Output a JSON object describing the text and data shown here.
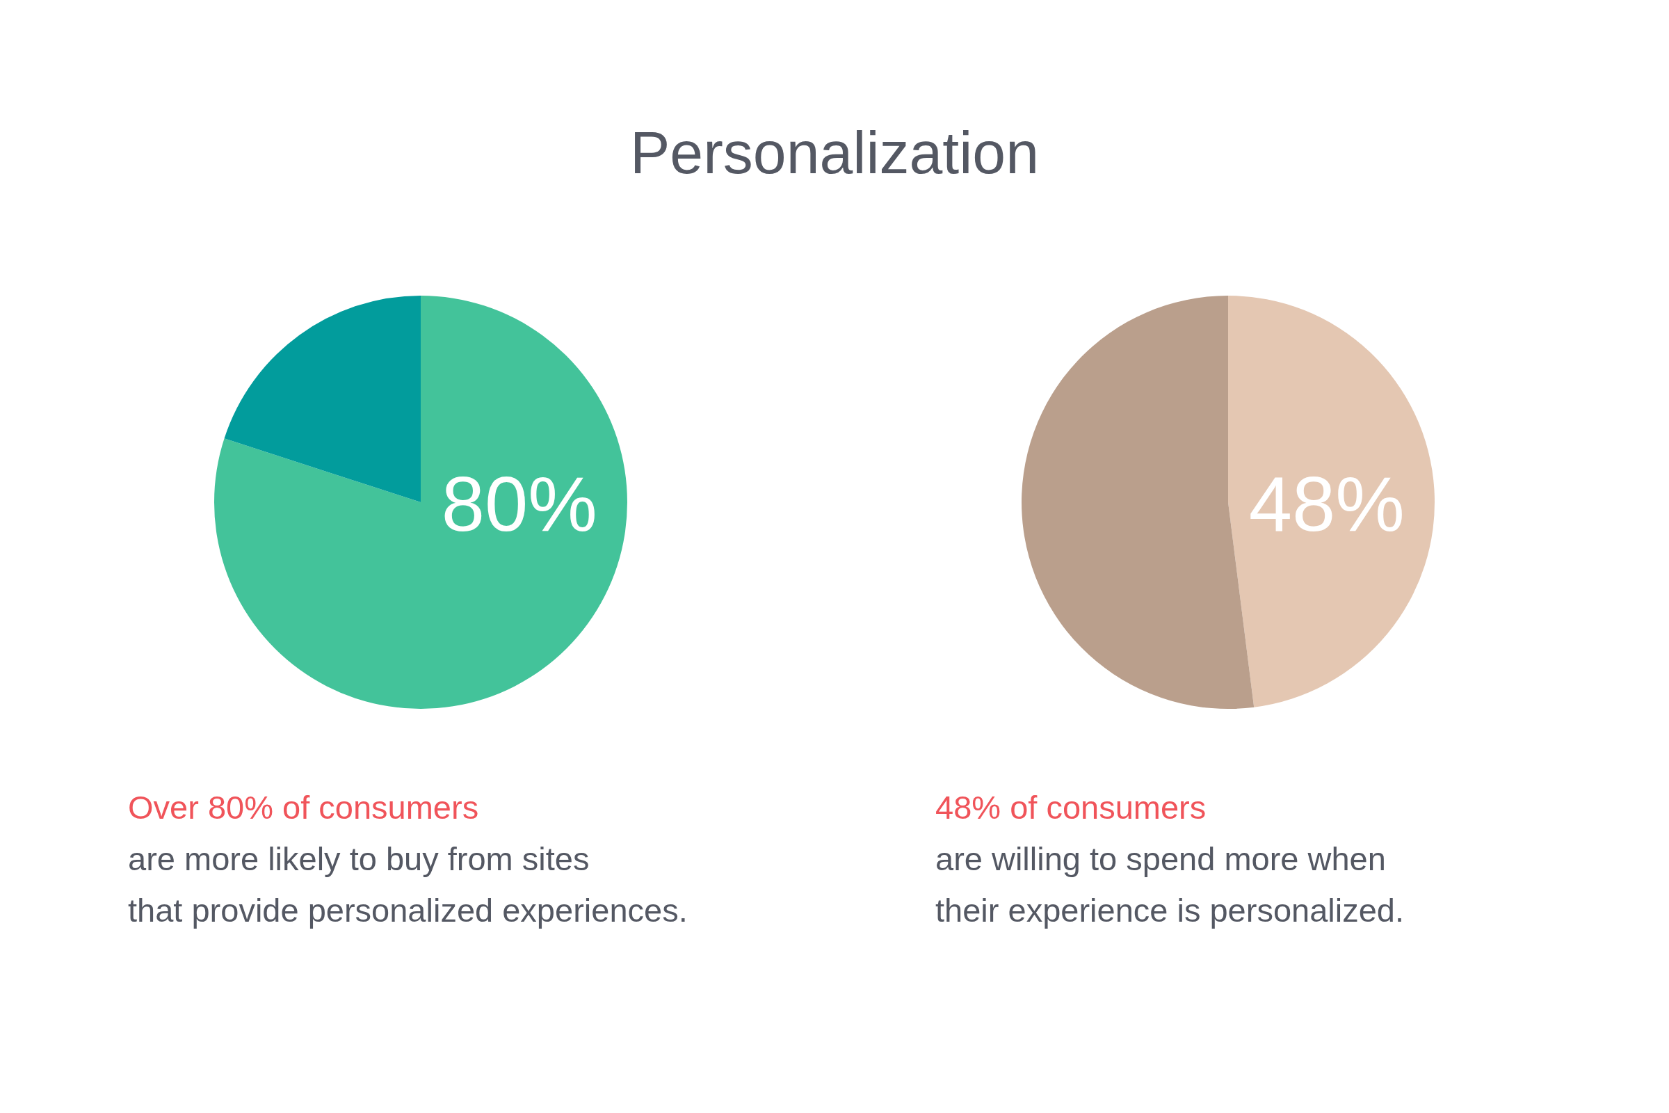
{
  "chart_data": [
    {
      "type": "pie",
      "title": "Personalization",
      "categories": [
        null,
        null
      ],
      "values": [
        80,
        20
      ],
      "colors": [
        "#43c39a",
        "#029c9c"
      ],
      "value_labels": [
        "80%",
        null
      ],
      "annotations": [
        "Over 80% of consumers",
        "are more likely to buy from sites",
        "that provide personalized experiences."
      ]
    },
    {
      "type": "pie",
      "categories": [
        null,
        null
      ],
      "values": [
        48,
        52
      ],
      "colors": [
        "#e4c7b2",
        "#ba9f8c"
      ],
      "value_labels": [
        "48%",
        null
      ],
      "annotations": [
        "48% of consumers",
        "are willing to spend more when",
        "their experience is personalized."
      ]
    }
  ]
}
